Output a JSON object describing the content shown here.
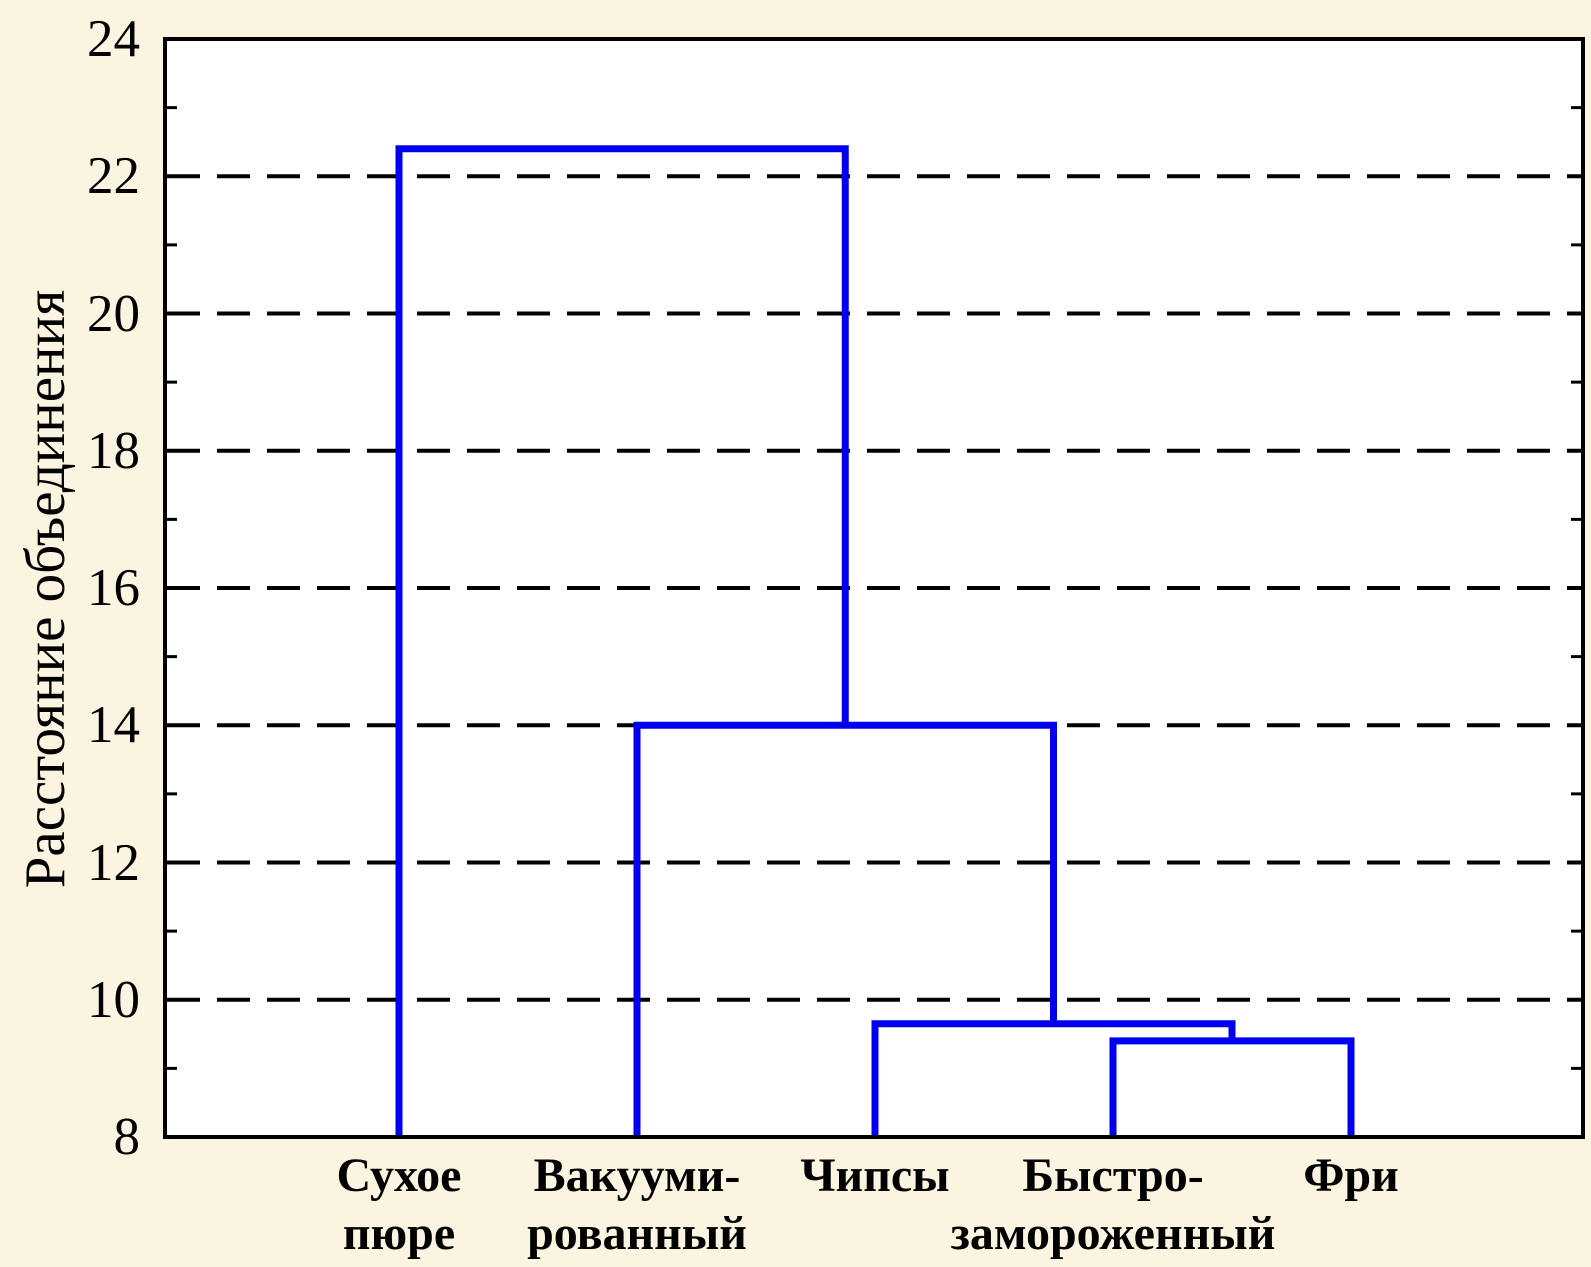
{
  "chart_data": {
    "type": "dendrogram",
    "title": "",
    "xlabel": "",
    "ylabel": "Расстояние объединения",
    "ylim": [
      8,
      24
    ],
    "yticks": [
      8,
      10,
      12,
      14,
      16,
      18,
      20,
      22,
      24
    ],
    "minor_tick_step": 1,
    "grid": "horizontal dashed lines at major ticks",
    "legend": "none",
    "leaves": [
      {
        "label": "Сухое пюре",
        "label_lines": [
          "Сухое",
          "пюре"
        ]
      },
      {
        "label": "Вакуумированный",
        "label_lines": [
          "Вакууми-",
          "рованный"
        ]
      },
      {
        "label": "Чипсы",
        "label_lines": [
          "Чипсы"
        ]
      },
      {
        "label": "Быстро-замороженный",
        "label_lines": [
          "Быстро-",
          "замороженный"
        ]
      },
      {
        "label": "Фри",
        "label_lines": [
          "Фри"
        ]
      }
    ],
    "merges": [
      {
        "left": "leaf-3",
        "right": "leaf-4",
        "height": 9.4
      },
      {
        "left": "leaf-2",
        "right": "merge-0",
        "height": 9.65
      },
      {
        "left": "leaf-1",
        "right": "merge-1",
        "height": 14.0
      },
      {
        "left": "leaf-0",
        "right": "merge-2",
        "height": 22.4
      }
    ],
    "colors": {
      "link": "#0000ee",
      "background": "#fbf4e0",
      "plot_background": "#ffffff",
      "axis": "#000000"
    }
  }
}
